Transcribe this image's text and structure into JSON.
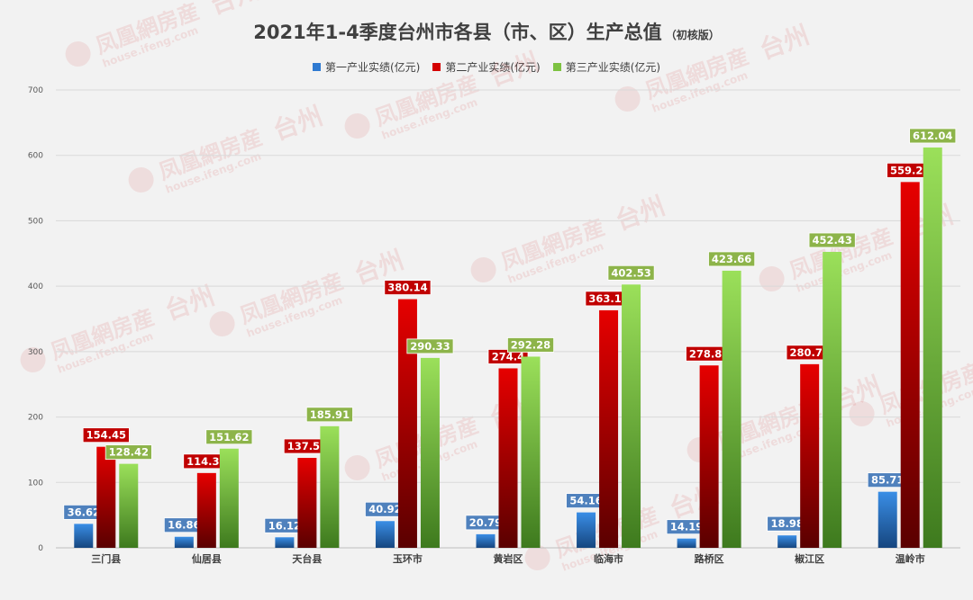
{
  "title": "2021年1-4季度台州市各县（市、区）生产总值",
  "subtitle": "（初核版）",
  "watermark": {
    "text": "凤凰網房産",
    "url": "house.ifeng.com",
    "city": "台州"
  },
  "chart_data": {
    "type": "bar",
    "title": "2021年1-4季度台州市各县（市、区）生产总值",
    "subtitle": "（初核版）",
    "xlabel": "",
    "ylabel": "",
    "ylim": [
      0,
      700
    ],
    "yticks": [
      "0",
      "100",
      "200",
      "300",
      "400",
      "500",
      "600",
      "700"
    ],
    "grid": true,
    "legend_position": "top",
    "categories": [
      "三门县",
      "仙居县",
      "天台县",
      "玉环市",
      "黄岩区",
      "临海市",
      "路桥区",
      "椒江区",
      "温岭市"
    ],
    "series": [
      {
        "name": "第一产业实绩(亿元)",
        "color": "#2f7ad1",
        "label_bg": "#4f81bd",
        "values": [
          36.62,
          16.86,
          16.12,
          40.92,
          20.79,
          54.16,
          14.19,
          18.98,
          85.71
        ],
        "labels": [
          "36.62",
          "16.86",
          "16.12",
          "40.92",
          "20.79",
          "54.16",
          "14.19",
          "18.98",
          "85.71"
        ]
      },
      {
        "name": "第二产业实绩(亿元)",
        "color": "#d40000",
        "label_bg": "#c00000",
        "values": [
          154.45,
          114.36,
          137.52,
          380.14,
          274.4,
          363.18,
          278.82,
          280.74,
          559.22
        ],
        "labels": [
          "154.45",
          "114.36",
          "137.52",
          "380.14",
          "274.4",
          "363.18",
          "278.82",
          "280.74",
          "559.22"
        ]
      },
      {
        "name": "第三产业实绩(亿元)",
        "color": "#7dc241",
        "label_bg": "#8db44a",
        "values": [
          128.42,
          151.62,
          185.91,
          290.33,
          292.28,
          402.53,
          423.66,
          452.43,
          612.04
        ],
        "labels": [
          "128.42",
          "151.62",
          "185.91",
          "290.33",
          "292.28",
          "402.53",
          "423.66",
          "452.43",
          "612.04"
        ]
      }
    ]
  }
}
